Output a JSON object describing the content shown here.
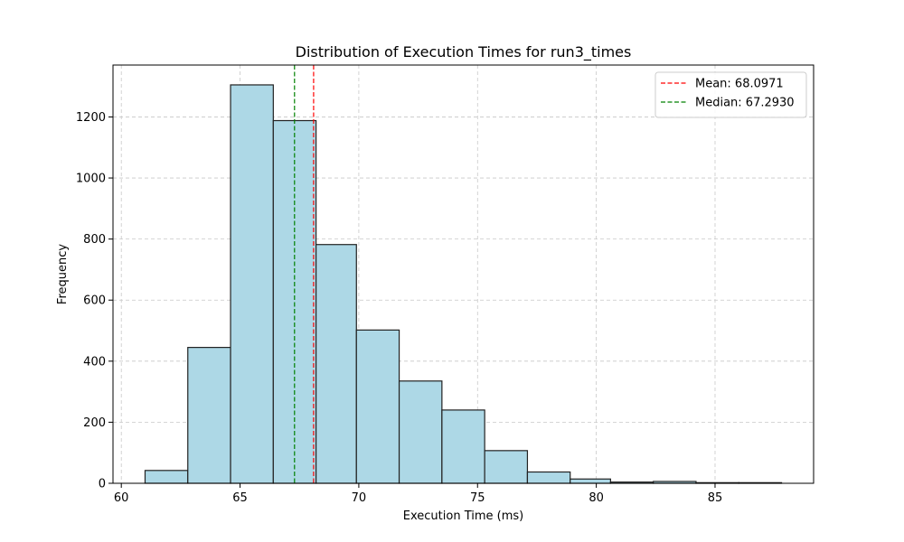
{
  "chart_data": {
    "type": "bar",
    "title": "Distribution of Execution Times for run3_times",
    "xlabel": "Execution Time (ms)",
    "ylabel": "Frequency",
    "xlim": [
      59.65,
      89.15
    ],
    "ylim": [
      0,
      1370
    ],
    "xticks": [
      60,
      65,
      70,
      75,
      80,
      85
    ],
    "yticks": [
      0,
      200,
      400,
      600,
      800,
      1000,
      1200
    ],
    "grid": true,
    "legend_position": "top-right",
    "bar_color": "#ADD8E6",
    "bar_edge_color": "#222222",
    "bin_edges": [
      61.0,
      62.8,
      64.6,
      66.4,
      68.2,
      69.9,
      71.7,
      73.5,
      75.3,
      77.1,
      78.9,
      80.6,
      82.4,
      84.2,
      86.0,
      87.8
    ],
    "values": [
      42,
      445,
      1305,
      1188,
      782,
      502,
      335,
      240,
      107,
      37,
      14,
      4,
      6,
      2,
      2
    ],
    "reference_lines": [
      {
        "label": "Mean: 68.0971",
        "x": 68.0971,
        "color": "#ff0000",
        "style": "dashed"
      },
      {
        "label": "Median: 67.2930",
        "x": 67.293,
        "color": "#008000",
        "style": "dashed"
      }
    ]
  }
}
